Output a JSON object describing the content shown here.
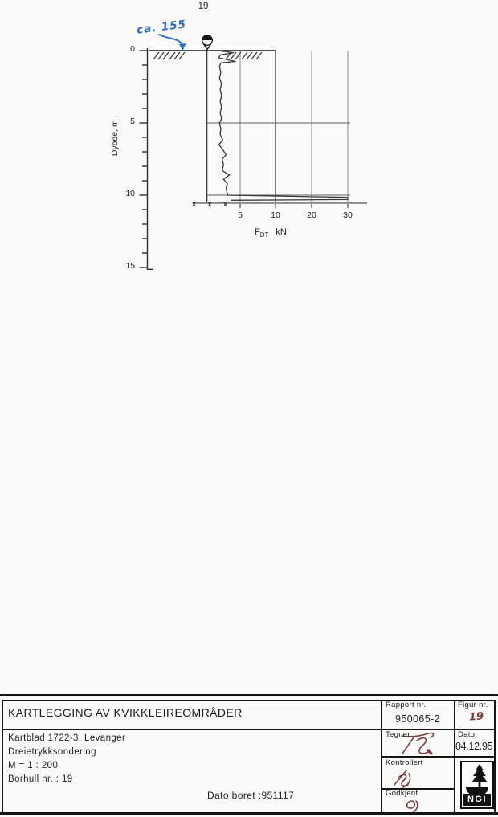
{
  "page": {
    "number_top": "19"
  },
  "handnote": {
    "text": "ca. 155",
    "color": "#2e6bd0"
  },
  "chart": {
    "depth_axis_label": "Dybde, m",
    "depth_ticks": [
      "0",
      "5",
      "10",
      "15"
    ],
    "force_ticks": [
      "5",
      "10",
      "20",
      "30"
    ],
    "force_label_f": "F",
    "force_label_sub": "DT",
    "force_label_unit": "kN",
    "refusal_marks": "x x x"
  },
  "chart_data": {
    "type": "line",
    "title": "Dreietrykksondering, borhull 19",
    "xlabel": "F_DT (kN)",
    "ylabel": "Dybde, m",
    "x_ticks": [
      5,
      10,
      20,
      30
    ],
    "x_scale_equal_segments": [
      0,
      5,
      10,
      20,
      30
    ],
    "ylim": [
      0,
      15
    ],
    "depth_unit": "m",
    "force_unit": "kN",
    "ground_level_note": "ca. 155",
    "termination_note": "refusal (x x x) at ca. 10.3 m, F_DT > 30 kN",
    "series": [
      {
        "name": "F_DT",
        "points": [
          [
            0.0,
            1.7
          ],
          [
            0.15,
            4.0
          ],
          [
            0.3,
            2.0
          ],
          [
            0.5,
            1.8
          ],
          [
            0.75,
            4.3
          ],
          [
            0.85,
            2.1
          ],
          [
            1.1,
            1.9
          ],
          [
            1.5,
            2.1
          ],
          [
            1.9,
            1.9
          ],
          [
            2.3,
            2.2
          ],
          [
            2.7,
            2.0
          ],
          [
            3.1,
            2.2
          ],
          [
            3.5,
            2.0
          ],
          [
            3.9,
            2.2
          ],
          [
            4.3,
            2.0
          ],
          [
            4.7,
            2.2
          ],
          [
            5.0,
            1.9
          ],
          [
            5.4,
            2.1
          ],
          [
            5.8,
            2.0
          ],
          [
            6.2,
            2.4
          ],
          [
            6.5,
            1.8
          ],
          [
            6.8,
            2.3
          ],
          [
            7.2,
            2.9
          ],
          [
            7.5,
            2.3
          ],
          [
            7.9,
            2.5
          ],
          [
            8.3,
            2.3
          ],
          [
            8.6,
            3.4
          ],
          [
            8.9,
            2.5
          ],
          [
            9.2,
            3.1
          ],
          [
            9.5,
            2.9
          ],
          [
            9.8,
            3.0
          ],
          [
            10.0,
            3.2
          ],
          [
            10.15,
            32
          ],
          [
            10.3,
            32
          ],
          [
            10.35,
            3.6
          ]
        ]
      }
    ]
  },
  "title_block": {
    "project_title": "KARTLEGGING AV KVIKKLEIREOMRÅDER",
    "rapport_label": "Rapport nr.",
    "rapport_value": "950065-2",
    "figur_label": "Figur nr.",
    "figur_value": "19",
    "detail_lines": [
      "Kartblad 1722-3, Levanger",
      "Dreietrykksondering",
      "M = 1 : 200",
      "Borhull nr. : 19"
    ],
    "dato_boret": "Dato boret :951117",
    "tegner_label": "Tegner",
    "dato_label": "Dato:",
    "dato_value": "04.12.95",
    "kontrollert_label": "Kontrollert",
    "godkjent_label": "Godkjent",
    "logo_text": "NGI"
  }
}
